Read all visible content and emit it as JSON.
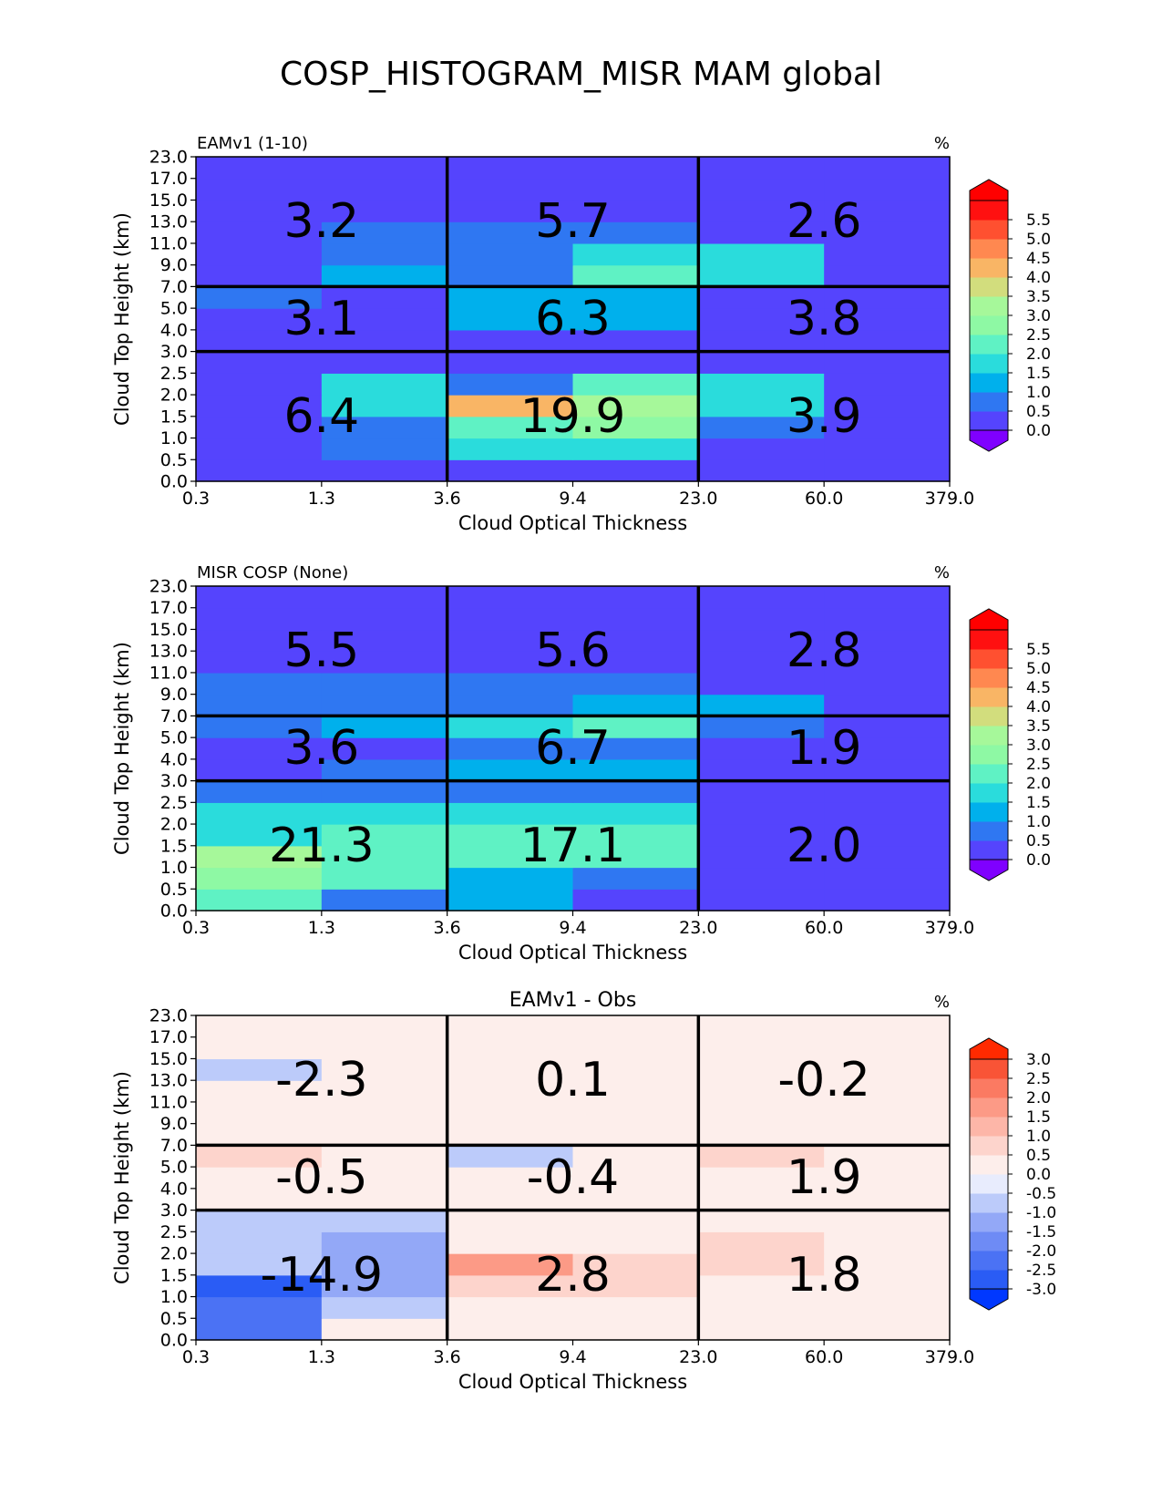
{
  "figure_title": "COSP_HISTOGRAM_MISR MAM global",
  "chart_data": [
    {
      "type": "heatmap",
      "title": "",
      "left_title": "EAMv1 (1-10)",
      "units": "%",
      "xlabel": "Cloud Optical Thickness",
      "ylabel": "Cloud Top Height (km)",
      "x_ticks": [
        "0.3",
        "1.3",
        "3.6",
        "9.4",
        "23.0",
        "60.0",
        "379.0"
      ],
      "y_ticks": [
        "0.0",
        "0.5",
        "1.0",
        "1.5",
        "2.0",
        "2.5",
        "3.0",
        "4.0",
        "5.0",
        "7.0",
        "9.0",
        "11.0",
        "13.0",
        "15.0",
        "17.0",
        "23.0"
      ],
      "colorbar": {
        "levels": [
          0.0,
          0.5,
          1.0,
          1.5,
          2.0,
          2.5,
          3.0,
          3.5,
          4.0,
          4.5,
          5.0,
          5.5
        ],
        "tick_labels": [
          "0.0",
          "0.5",
          "1.0",
          "1.5",
          "2.0",
          "2.5",
          "3.0",
          "3.5",
          "4.0",
          "4.5",
          "5.0",
          "5.5"
        ],
        "colors": [
          "#5544fd",
          "#2f77f2",
          "#00b0ec",
          "#2adcdc",
          "#5ff2c4",
          "#8ef9a4",
          "#a6f89a",
          "#d2dd7d",
          "#f9b565",
          "#ff8850",
          "#ff5030",
          "#ff1010"
        ],
        "under_color": "#7f00ff",
        "over_color": "#ff0000"
      },
      "values": [
        [
          0.2,
          0.3,
          0.0,
          0.0,
          0.0,
          0.0
        ],
        [
          0.2,
          0.8,
          1.5,
          1.5,
          0.0,
          0.0
        ],
        [
          0.0,
          0.8,
          2.0,
          2.5,
          0.8,
          0.0
        ],
        [
          0.0,
          1.5,
          4.3,
          3.0,
          1.5,
          0.0
        ],
        [
          0.0,
          1.5,
          0.8,
          2.0,
          1.5,
          0.0
        ],
        [
          0.0,
          0.3,
          0.3,
          0.2,
          0.2,
          0.0
        ],
        [
          0.0,
          0.0,
          0.3,
          0.3,
          0.0,
          0.0
        ],
        [
          0.0,
          0.0,
          1.0,
          1.0,
          0.0,
          0.0
        ],
        [
          0.7,
          0.0,
          1.0,
          1.0,
          0.2,
          0.0
        ],
        [
          0.0,
          1.0,
          0.8,
          2.0,
          1.5,
          0.0
        ],
        [
          0.0,
          0.8,
          0.8,
          1.5,
          1.5,
          0.0
        ],
        [
          0.0,
          0.8,
          0.8,
          0.8,
          0.0,
          0.0
        ],
        [
          0.0,
          0.0,
          0.0,
          0.0,
          0.0,
          0.0
        ],
        [
          0.0,
          0.0,
          0.0,
          0.0,
          0.0,
          0.0
        ],
        [
          0.0,
          0.0,
          0.0,
          0.0,
          0.0,
          0.0
        ]
      ],
      "block_values": [
        [
          "6.4",
          "19.9",
          "3.9"
        ],
        [
          "3.1",
          "6.3",
          "3.8"
        ],
        [
          "3.2",
          "5.7",
          "2.6"
        ]
      ]
    },
    {
      "type": "heatmap",
      "title": "",
      "left_title": "MISR COSP (None)",
      "units": "%",
      "xlabel": "Cloud Optical Thickness",
      "ylabel": "Cloud Top Height (km)",
      "x_ticks": [
        "0.3",
        "1.3",
        "3.6",
        "9.4",
        "23.0",
        "60.0",
        "379.0"
      ],
      "y_ticks": [
        "0.0",
        "0.5",
        "1.0",
        "1.5",
        "2.0",
        "2.5",
        "3.0",
        "4.0",
        "5.0",
        "7.0",
        "9.0",
        "11.0",
        "13.0",
        "15.0",
        "17.0",
        "23.0"
      ],
      "colorbar": {
        "levels": [
          0.0,
          0.5,
          1.0,
          1.5,
          2.0,
          2.5,
          3.0,
          3.5,
          4.0,
          4.5,
          5.0,
          5.5
        ],
        "tick_labels": [
          "0.0",
          "0.5",
          "1.0",
          "1.5",
          "2.0",
          "2.5",
          "3.0",
          "3.5",
          "4.0",
          "4.5",
          "5.0",
          "5.5"
        ],
        "colors": [
          "#5544fd",
          "#2f77f2",
          "#00b0ec",
          "#2adcdc",
          "#5ff2c4",
          "#8ef9a4",
          "#a6f89a",
          "#d2dd7d",
          "#f9b565",
          "#ff8850",
          "#ff5030",
          "#ff1010"
        ],
        "under_color": "#7f00ff",
        "over_color": "#ff0000"
      },
      "values": [
        [
          2.2,
          0.8,
          1.2,
          0.3,
          0.0,
          0.0
        ],
        [
          2.8,
          2.0,
          1.2,
          0.8,
          0.0,
          0.0
        ],
        [
          3.2,
          2.2,
          2.0,
          2.2,
          0.0,
          0.0
        ],
        [
          1.8,
          2.2,
          2.2,
          2.0,
          0.0,
          0.0
        ],
        [
          1.5,
          1.5,
          1.5,
          1.5,
          0.0,
          0.0
        ],
        [
          0.8,
          0.8,
          0.8,
          0.8,
          0.0,
          0.0
        ],
        [
          0.0,
          0.8,
          1.0,
          1.0,
          0.0,
          0.0
        ],
        [
          0.0,
          0.2,
          0.8,
          0.8,
          0.0,
          0.0
        ],
        [
          0.8,
          1.2,
          1.5,
          2.2,
          0.8,
          0.0
        ],
        [
          0.8,
          0.8,
          0.8,
          1.2,
          1.2,
          0.0
        ],
        [
          0.8,
          0.8,
          0.8,
          0.8,
          0.0,
          0.0
        ],
        [
          0.0,
          0.0,
          0.0,
          0.0,
          0.0,
          0.0
        ],
        [
          0.0,
          0.0,
          0.0,
          0.0,
          0.0,
          0.0
        ],
        [
          0.0,
          0.0,
          0.0,
          0.0,
          0.0,
          0.0
        ],
        [
          0.0,
          0.0,
          0.0,
          0.0,
          0.0,
          0.0
        ]
      ],
      "block_values": [
        [
          "21.3",
          "17.1",
          "2.0"
        ],
        [
          "3.6",
          "6.7",
          "1.9"
        ],
        [
          "5.5",
          "5.6",
          "2.8"
        ]
      ]
    },
    {
      "type": "heatmap",
      "title": "EAMv1 - Obs",
      "left_title": "",
      "units": "%",
      "xlabel": "Cloud Optical Thickness",
      "ylabel": "Cloud Top Height (km)",
      "x_ticks": [
        "0.3",
        "1.3",
        "3.6",
        "9.4",
        "23.0",
        "60.0",
        "379.0"
      ],
      "y_ticks": [
        "0.0",
        "0.5",
        "1.0",
        "1.5",
        "2.0",
        "2.5",
        "3.0",
        "4.0",
        "5.0",
        "7.0",
        "9.0",
        "11.0",
        "13.0",
        "15.0",
        "17.0",
        "23.0"
      ],
      "colorbar": {
        "levels": [
          -3.0,
          -2.5,
          -2.0,
          -1.5,
          -1.0,
          -0.5,
          0.0,
          0.5,
          1.0,
          1.5,
          2.0,
          2.5,
          3.0
        ],
        "tick_labels": [
          "-3.0",
          "-2.5",
          "-2.0",
          "-1.5",
          "-1.0",
          "-0.5",
          "0.0",
          "0.5",
          "1.0",
          "1.5",
          "2.0",
          "2.5",
          "3.0"
        ],
        "colors": [
          "#2a5cf5",
          "#4b72f4",
          "#6e8bf5",
          "#93a8f7",
          "#bccbfa",
          "#e8ecfd",
          "#fdeeeb",
          "#fdd4cc",
          "#fdb6a8",
          "#fc9a86",
          "#fb7a62",
          "#f95436"
        ],
        "under_color": "#0038ff",
        "over_color": "#ff2a00"
      },
      "values": [
        [
          -2.2,
          0.0,
          0.0,
          0.0,
          0.0,
          0.0
        ],
        [
          -2.2,
          -0.8,
          0.0,
          0.3,
          0.3,
          0.0
        ],
        [
          -2.8,
          -1.2,
          0.8,
          0.8,
          0.3,
          0.0
        ],
        [
          -0.8,
          -1.2,
          1.8,
          0.8,
          0.8,
          0.0
        ],
        [
          -0.8,
          -1.2,
          0.0,
          0.3,
          0.8,
          0.0
        ],
        [
          -0.8,
          -0.8,
          0.0,
          0.0,
          0.3,
          0.3
        ],
        [
          0.0,
          0.0,
          0.0,
          0.0,
          0.3,
          0.3
        ],
        [
          0.0,
          0.0,
          0.0,
          0.3,
          0.3,
          0.3
        ],
        [
          0.8,
          0.0,
          -0.8,
          0.3,
          0.8,
          0.0
        ],
        [
          0.0,
          0.0,
          0.0,
          0.3,
          0.0,
          0.0
        ],
        [
          0.0,
          0.3,
          0.0,
          0.3,
          0.0,
          0.0
        ],
        [
          0.0,
          0.3,
          0.0,
          0.3,
          0.0,
          0.3
        ],
        [
          -1.0,
          0.0,
          0.0,
          0.3,
          0.0,
          0.0
        ],
        [
          0.0,
          0.0,
          0.0,
          0.3,
          0.0,
          0.0
        ],
        [
          0.0,
          0.0,
          0.0,
          0.0,
          0.0,
          0.0
        ]
      ],
      "block_values": [
        [
          "-14.9",
          "2.8",
          "1.8"
        ],
        [
          "-0.5",
          "-0.4",
          "1.9"
        ],
        [
          "-2.3",
          "0.1",
          "-0.2"
        ]
      ]
    }
  ]
}
